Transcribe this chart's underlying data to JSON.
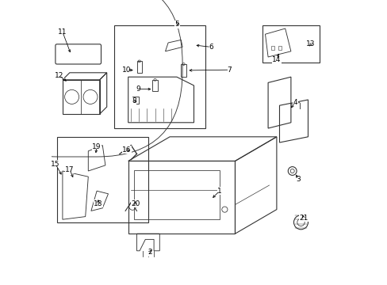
{
  "title": "",
  "background_color": "#ffffff",
  "line_color": "#333333",
  "figsize": [
    4.89,
    3.6
  ],
  "dpi": 100
}
